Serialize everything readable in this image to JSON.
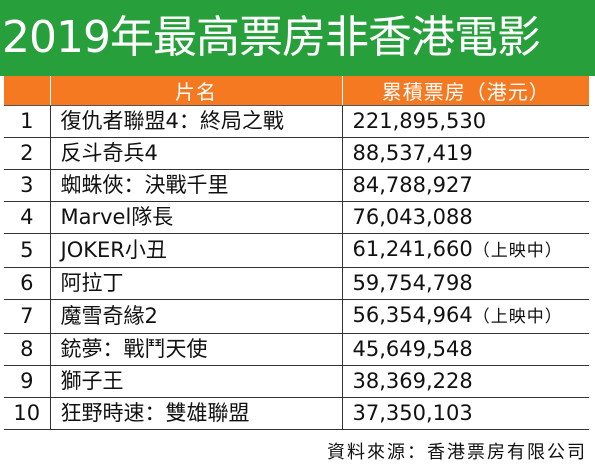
{
  "title": "2019年最高票房非香港電影",
  "table": {
    "headers": [
      "",
      "片名",
      "累積票房（港元）"
    ],
    "rows": [
      {
        "rank": "1",
        "title": "復仇者聯盟4：終局之戰",
        "gross": "221,895,530",
        "note": ""
      },
      {
        "rank": "2",
        "title": "反斗奇兵4",
        "gross": "88,537,419",
        "note": ""
      },
      {
        "rank": "3",
        "title": "蜘蛛俠：決戰千里",
        "gross": "84,788,927",
        "note": ""
      },
      {
        "rank": "4",
        "title": "Marvel隊長",
        "gross": "76,043,088",
        "note": ""
      },
      {
        "rank": "5",
        "title": "JOKER小丑",
        "gross": "61,241,660",
        "note": "（上映中）"
      },
      {
        "rank": "6",
        "title": "阿拉丁",
        "gross": "59,754,798",
        "note": ""
      },
      {
        "rank": "7",
        "title": "魔雪奇緣2",
        "gross": "56,354,964",
        "note": "（上映中）"
      },
      {
        "rank": "8",
        "title": "銃夢：戰鬥天使",
        "gross": "45,649,548",
        "note": ""
      },
      {
        "rank": "9",
        "title": "獅子王",
        "gross": "38,369,228",
        "note": ""
      },
      {
        "rank": "10",
        "title": "狂野時速：雙雄聯盟",
        "gross": "37,350,103",
        "note": ""
      }
    ]
  },
  "source": "資料來源：香港票房有限公司",
  "colors": {
    "title_bg": "#27a03c",
    "header_bg": "#f47920",
    "title_text": "#ffffff"
  }
}
